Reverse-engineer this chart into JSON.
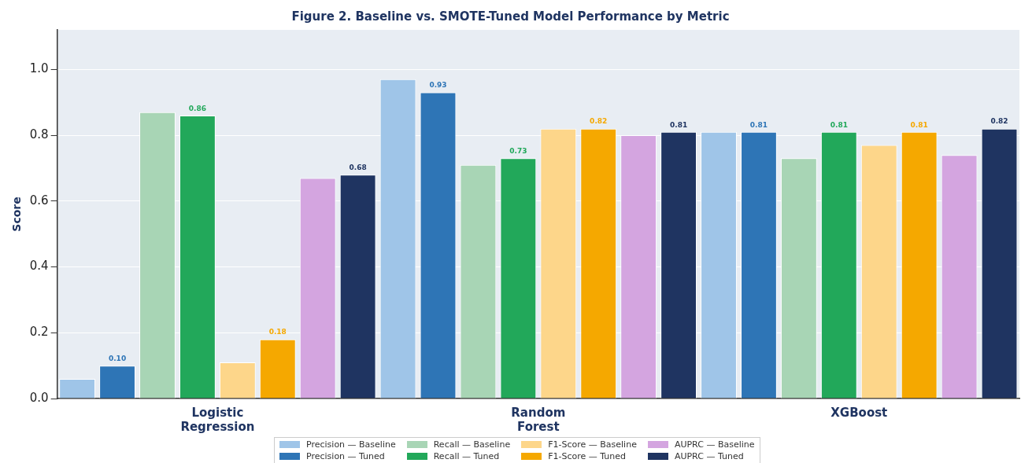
{
  "chart_data": {
    "type": "bar",
    "title": "Figure 2. Baseline vs. SMOTE-Tuned Model Performance by Metric",
    "ylabel": "Score",
    "categories": [
      "Logistic Regression",
      "Random Forest",
      "XGBoost"
    ],
    "series": [
      {
        "name": "Precision — Baseline",
        "color": "#9fc5e8",
        "values": [
          0.06,
          0.97,
          0.81
        ]
      },
      {
        "name": "Precision — Tuned",
        "color": "#2e75b6",
        "values": [
          0.1,
          0.93,
          0.81
        ],
        "value_labels": [
          "0.10",
          "0.93",
          "0.81"
        ]
      },
      {
        "name": "Recall — Baseline",
        "color": "#a8d5b5",
        "values": [
          0.87,
          0.71,
          0.73
        ]
      },
      {
        "name": "Recall — Tuned",
        "color": "#22a85a",
        "values": [
          0.86,
          0.73,
          0.81
        ],
        "value_labels": [
          "0.86",
          "0.73",
          "0.81"
        ]
      },
      {
        "name": "F1-Score — Baseline",
        "color": "#fdd68a",
        "values": [
          0.11,
          0.82,
          0.77
        ]
      },
      {
        "name": "F1-Score — Tuned",
        "color": "#f5a800",
        "values": [
          0.18,
          0.82,
          0.81
        ],
        "value_labels": [
          "0.18",
          "0.82",
          "0.81"
        ]
      },
      {
        "name": "AUPRC — Baseline",
        "color": "#d4a5e0",
        "values": [
          0.67,
          0.8,
          0.74
        ]
      },
      {
        "name": "AUPRC — Tuned",
        "color": "#1f3461",
        "values": [
          0.68,
          0.81,
          0.82
        ],
        "value_labels": [
          "0.68",
          "0.81",
          "0.82"
        ]
      }
    ],
    "ylim": [
      0,
      1.12
    ],
    "yticks": [
      {
        "value": 0,
        "label": "0.0"
      },
      {
        "value": 0.2,
        "label": "0.2"
      },
      {
        "value": 0.4,
        "label": "0.4"
      },
      {
        "value": 0.6,
        "label": "0.6"
      },
      {
        "value": 0.8,
        "label": "0.8"
      },
      {
        "value": 1,
        "label": "1.0"
      }
    ],
    "grid": "y",
    "legend": "bottom"
  }
}
